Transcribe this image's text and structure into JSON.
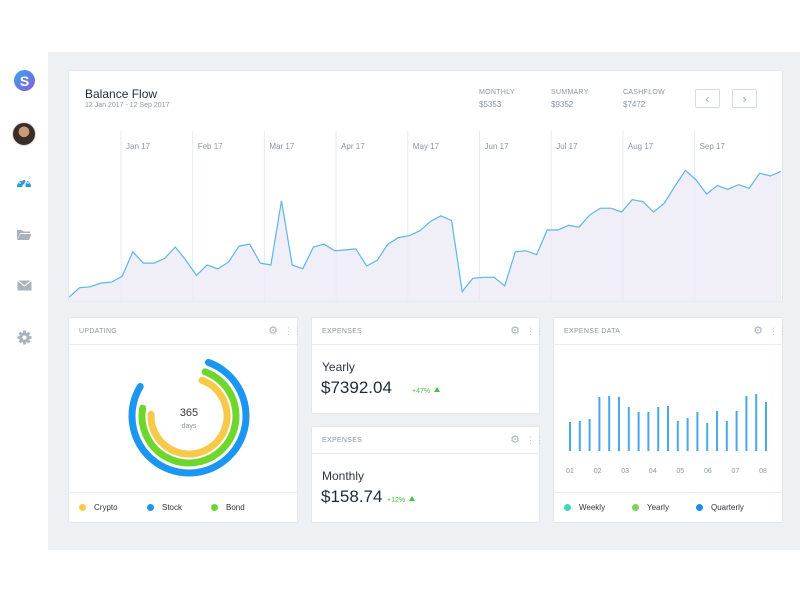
{
  "sidebar": {
    "logo_letter": "S",
    "items": [
      {
        "name": "dashboard",
        "icon": "speedometer-icon",
        "active": true
      },
      {
        "name": "folder",
        "icon": "folder-icon"
      },
      {
        "name": "mail",
        "icon": "mail-icon"
      },
      {
        "name": "settings",
        "icon": "gear-icon"
      }
    ]
  },
  "balance": {
    "title": "Balance Flow",
    "date_range": "12 Jan 2017 - 12 Sep 2017",
    "stats": [
      {
        "label": "MONTHLY",
        "value": "$5353"
      },
      {
        "label": "SUMMARY",
        "value": "$9352"
      },
      {
        "label": "CASHFLOW",
        "value": "$7472"
      }
    ],
    "prev_label": "‹",
    "next_label": "›"
  },
  "chart_data": {
    "type": "area",
    "title": "Balance Flow",
    "x_labels": [
      "Jan 17",
      "Feb 17",
      "Mar 17",
      "Apr 17",
      "May 17",
      "Jun 17",
      "Jul 17",
      "Aug 17",
      "Sep 17"
    ],
    "values": [
      4,
      14,
      15,
      19,
      20,
      26,
      52,
      40,
      40,
      45,
      57,
      43,
      27,
      38,
      34,
      41,
      58,
      60,
      40,
      38,
      106,
      38,
      34,
      57,
      60,
      53,
      54,
      55,
      37,
      43,
      60,
      67,
      69,
      74,
      84,
      90,
      85,
      10,
      24,
      25,
      25,
      16,
      52,
      53,
      49,
      75,
      75,
      80,
      78,
      91,
      98,
      98,
      94,
      107,
      105,
      94,
      103,
      121,
      138,
      128,
      113,
      122,
      118,
      123,
      119,
      135,
      132,
      137
    ],
    "color": "#5eb5ea",
    "fill": "#eceaf5"
  },
  "updating": {
    "header": "UPDATING",
    "center_value": "365",
    "center_unit": "days",
    "rings": [
      {
        "name": "Stock",
        "color": "#1b97f3",
        "fraction": 0.78
      },
      {
        "name": "Bond",
        "color": "#6fd62b",
        "fraction": 0.72
      },
      {
        "name": "Crypto",
        "color": "#f7c948",
        "fraction": 0.7
      }
    ],
    "legend": [
      {
        "label": "Crypto",
        "color": "#f7c948"
      },
      {
        "label": "Stock",
        "color": "#1b97f3"
      },
      {
        "label": "Bond",
        "color": "#6fd62b"
      }
    ]
  },
  "expenses_yearly": {
    "header": "EXPENSES",
    "label": "Yearly",
    "value": "$7392.04",
    "change": "+47%"
  },
  "expenses_monthly": {
    "header": "EXPENSES",
    "label": "Monthly",
    "value": "$158.74",
    "change": "+12%"
  },
  "expense_data": {
    "header": "EXPENSE DATA",
    "x_labels": [
      "01",
      "02",
      "03",
      "04",
      "05",
      "06",
      "07",
      "08"
    ],
    "bars": [
      29,
      30,
      32,
      54,
      55,
      54,
      44,
      39,
      39,
      44,
      45,
      30,
      33,
      39,
      28,
      40,
      30,
      40,
      55,
      57,
      49
    ],
    "bar_color": "#4aa8e8",
    "legend": [
      {
        "label": "Weekly",
        "color": "#46d6b4"
      },
      {
        "label": "Yearly",
        "color": "#7dd05e"
      },
      {
        "label": "Quarterly",
        "color": "#1b8ef0"
      }
    ]
  }
}
